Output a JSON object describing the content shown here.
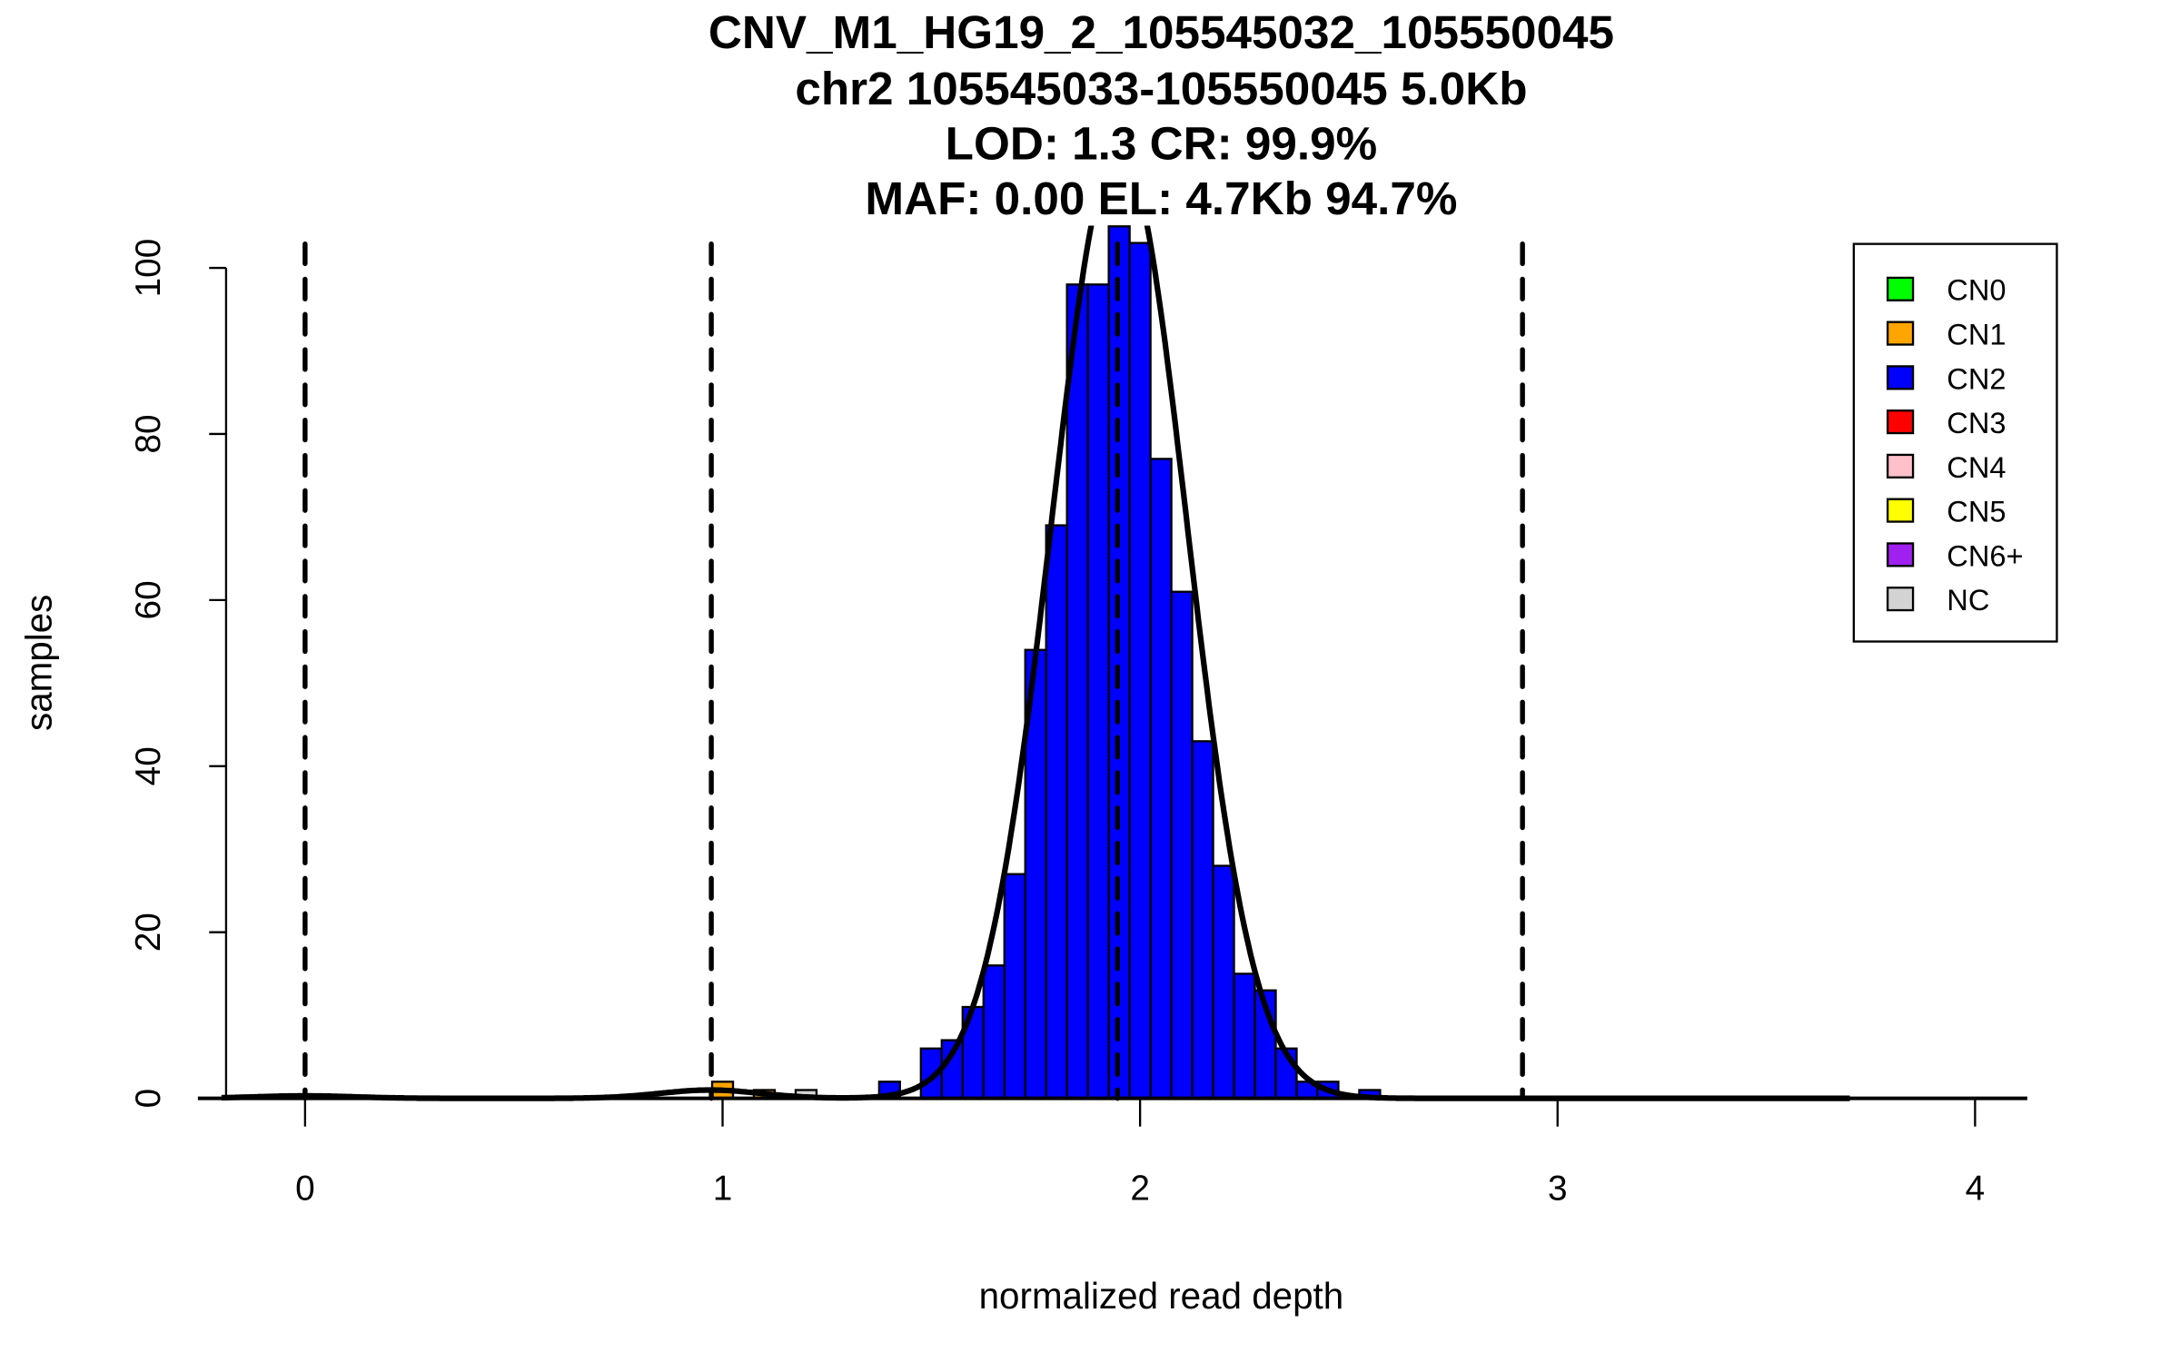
{
  "chart_data": {
    "type": "bar",
    "title_lines": [
      "CNV_M1_HG19_2_105545032_105550045",
      "chr2 105545033-105550045 5.0Kb",
      "LOD: 1.3 CR: 99.9%",
      "MAF: 0.00 EL: 4.7Kb 94.7%"
    ],
    "xlabel": "normalized read depth",
    "ylabel": "samples",
    "xlim": [
      -0.2,
      4.1
    ],
    "ylim": [
      0,
      105
    ],
    "xticks": [
      "0",
      "1",
      "2",
      "3",
      "4"
    ],
    "yticks": [
      "0",
      "20",
      "40",
      "60",
      "80",
      "100"
    ],
    "bin_width": 0.05,
    "bars": [
      {
        "x": 0.975,
        "value": 2,
        "class": "CN1"
      },
      {
        "x": 1.075,
        "value": 1,
        "class": "CN1"
      },
      {
        "x": 1.175,
        "value": 1,
        "class": "NC"
      },
      {
        "x": 1.375,
        "value": 2,
        "class": "CN2"
      },
      {
        "x": 1.475,
        "value": 6,
        "class": "CN2"
      },
      {
        "x": 1.525,
        "value": 7,
        "class": "CN2"
      },
      {
        "x": 1.575,
        "value": 11,
        "class": "CN2"
      },
      {
        "x": 1.625,
        "value": 16,
        "class": "CN2"
      },
      {
        "x": 1.675,
        "value": 27,
        "class": "CN2"
      },
      {
        "x": 1.725,
        "value": 54,
        "class": "CN2"
      },
      {
        "x": 1.775,
        "value": 69,
        "class": "CN2"
      },
      {
        "x": 1.825,
        "value": 98,
        "class": "CN2"
      },
      {
        "x": 1.875,
        "value": 98,
        "class": "CN2"
      },
      {
        "x": 1.925,
        "value": 105,
        "class": "CN2"
      },
      {
        "x": 1.975,
        "value": 103,
        "class": "CN2"
      },
      {
        "x": 2.025,
        "value": 77,
        "class": "CN2"
      },
      {
        "x": 2.075,
        "value": 61,
        "class": "CN2"
      },
      {
        "x": 2.125,
        "value": 43,
        "class": "CN2"
      },
      {
        "x": 2.175,
        "value": 28,
        "class": "CN2"
      },
      {
        "x": 2.225,
        "value": 15,
        "class": "CN2"
      },
      {
        "x": 2.275,
        "value": 13,
        "class": "CN2"
      },
      {
        "x": 2.325,
        "value": 6,
        "class": "CN2"
      },
      {
        "x": 2.375,
        "value": 2,
        "class": "CN2"
      },
      {
        "x": 2.425,
        "value": 2,
        "class": "CN2"
      },
      {
        "x": 2.525,
        "value": 1,
        "class": "CN2"
      }
    ],
    "fit_components": [
      {
        "mean": 0.0,
        "sd": 0.12,
        "amplitude": 0.3
      },
      {
        "mean": 0.97,
        "sd": 0.12,
        "amplitude": 1.0
      },
      {
        "mean": 1.95,
        "sd": 0.162,
        "amplitude": 114.5
      }
    ],
    "dashed_lines_x": [
      0.0,
      0.973,
      1.946,
      2.916
    ],
    "legend": {
      "placement": "top-right",
      "entries": [
        {
          "label": "CN0",
          "color": "#00ff00"
        },
        {
          "label": "CN1",
          "color": "#ffa500"
        },
        {
          "label": "CN2",
          "color": "#0000ff"
        },
        {
          "label": "CN3",
          "color": "#ff0000"
        },
        {
          "label": "CN4",
          "color": "#ffc0cb"
        },
        {
          "label": "CN5",
          "color": "#ffff00"
        },
        {
          "label": "CN6+",
          "color": "#a020f0"
        },
        {
          "label": "NC",
          "color": "#d3d3d3"
        }
      ]
    }
  }
}
